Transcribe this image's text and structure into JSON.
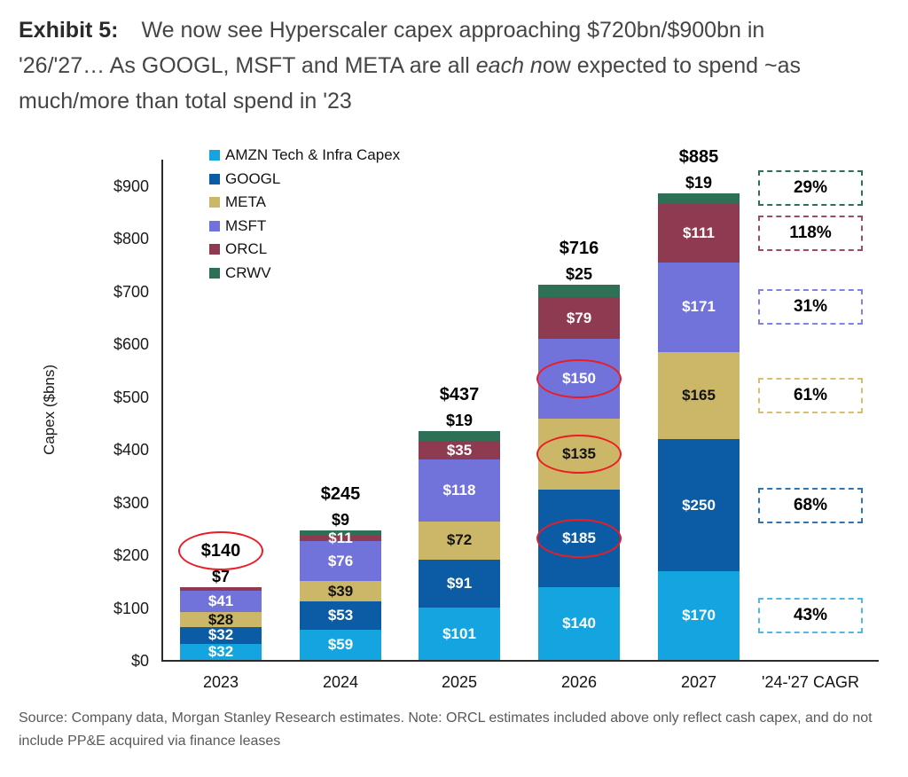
{
  "title": {
    "l1_bold": "Exhibit 5:",
    "l1_text": "We now see Hyperscaler capex approaching $720bn/$900bn in",
    "l2_pre": "'26/'27… As GOOGL, MSFT and META are all ",
    "l2_italic": "each n",
    "l2_post": "ow expected to spend ~as",
    "l3_text": "much/more than total spend in '23",
    "text_color": "#454545"
  },
  "source": "Source: Company data, Morgan Stanley Research estimates. Note: ORCL estimates included above only reflect cash capex, and do not include PP&E acquired via finance leases",
  "chart_data": {
    "type": "bar",
    "stacked": true,
    "title": "",
    "xlabel": "",
    "ylabel": "Capex ($bns)",
    "ylim": [
      0,
      900
    ],
    "ytick_step": 100,
    "yticks": [
      "$0",
      "$100",
      "$200",
      "$300",
      "$400",
      "$500",
      "$600",
      "$700",
      "$800",
      "$900"
    ],
    "grid": false,
    "legend_position": "top-left-inside",
    "categories": [
      "2023",
      "2024",
      "2025",
      "2026",
      "2027"
    ],
    "cagr_header": "'24-'27 CAGR",
    "value_prefix": "$",
    "annotation_color": "#EC1C24",
    "axis_color": "#2b2b2b",
    "series": [
      {
        "name": "AMZN Tech & Infra Capex",
        "short": "amzn",
        "color": "#14A5E0",
        "label_color": "#FFFFFF",
        "values": [
          32,
          59,
          101,
          140,
          170
        ],
        "outside": [
          false,
          false,
          false,
          false,
          false
        ],
        "circled": [
          false,
          false,
          false,
          false,
          false
        ],
        "cagr": "43%",
        "cagr_color": "#4FB8EA"
      },
      {
        "name": "GOOGL",
        "short": "googl",
        "color": "#0B5CA4",
        "label_color": "#FFFFFF",
        "values": [
          32,
          53,
          91,
          185,
          250
        ],
        "outside": [
          false,
          false,
          false,
          false,
          false
        ],
        "circled": [
          false,
          false,
          false,
          true,
          false
        ],
        "cagr": "68%",
        "cagr_color": "#2F74B5"
      },
      {
        "name": "META",
        "short": "meta",
        "color": "#CBB767",
        "label_color": "#131313",
        "values": [
          28,
          39,
          72,
          135,
          165
        ],
        "outside": [
          false,
          false,
          false,
          false,
          false
        ],
        "circled": [
          false,
          false,
          false,
          true,
          false
        ],
        "cagr": "61%",
        "cagr_color": "#D9BE6F"
      },
      {
        "name": "MSFT",
        "short": "msft",
        "color": "#7173DB",
        "label_color": "#FFFFFF",
        "values": [
          41,
          76,
          118,
          150,
          171
        ],
        "outside": [
          false,
          false,
          false,
          false,
          false
        ],
        "circled": [
          false,
          false,
          false,
          true,
          false
        ],
        "cagr": "31%",
        "cagr_color": "#7F82E8"
      },
      {
        "name": "ORCL",
        "short": "orcl",
        "color": "#8E3A51",
        "label_color": "#FFFFFF",
        "values": [
          7,
          11,
          35,
          79,
          111
        ],
        "outside": [
          true,
          false,
          false,
          false,
          false
        ],
        "circled": [
          false,
          false,
          false,
          false,
          false
        ],
        "cagr": "118%",
        "cagr_color": "#A24A5B"
      },
      {
        "name": "CRWV",
        "short": "crwv",
        "color": "#2D7055",
        "label_color": "#131313",
        "values": [
          0,
          9,
          19,
          25,
          19
        ],
        "outside": [
          false,
          true,
          true,
          true,
          true
        ],
        "circled": [
          false,
          false,
          false,
          false,
          false
        ],
        "cagr": "29%",
        "cagr_color": "#2D7055"
      }
    ],
    "totals": [
      "$140",
      "$245",
      "$437",
      "$716",
      "$885"
    ],
    "totals_circled": [
      true,
      false,
      false,
      false,
      false
    ]
  }
}
